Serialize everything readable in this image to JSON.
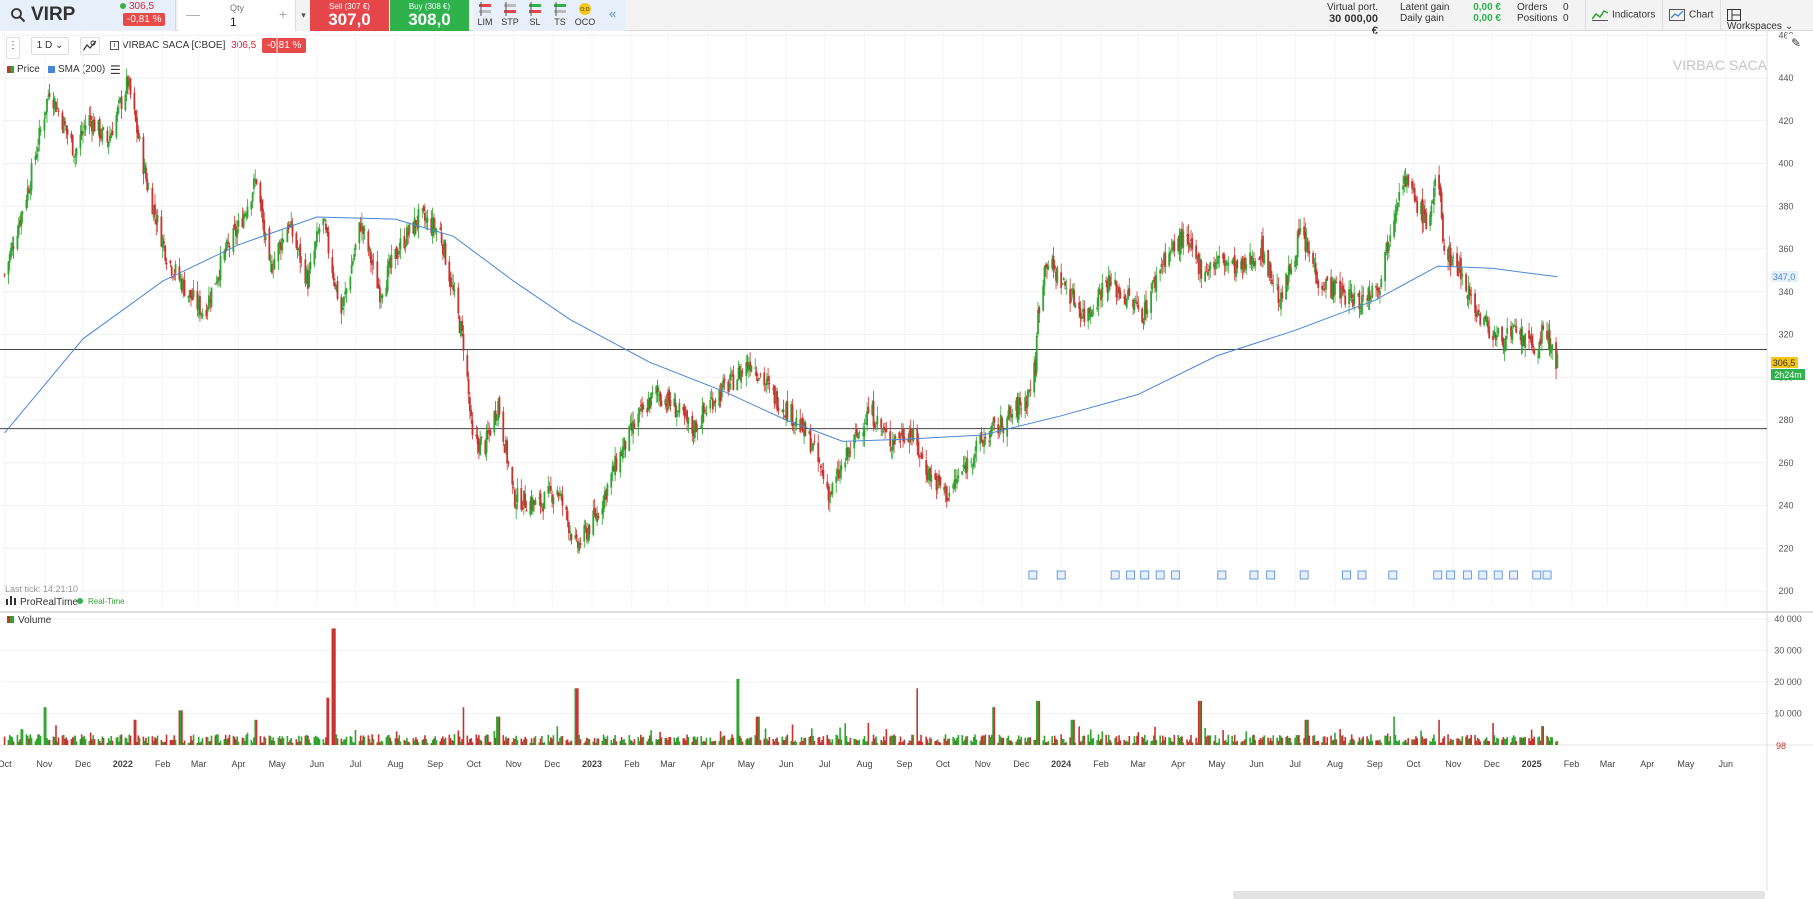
{
  "instrument": {
    "ticker": "VIRP",
    "last_price": "306,5",
    "change_pct": "-0,81 %",
    "full_name": "VIRBAC SACA [CBOE]",
    "watermark": "VIRBAC SACA"
  },
  "order_entry": {
    "qty_label": "Qty",
    "qty_value": "1",
    "sell_label": "Sell (307 €)",
    "sell_price": "307,0",
    "buy_label": "Buy (308 €)",
    "buy_price": "308,0",
    "order_types": [
      "LIM",
      "STP",
      "SL",
      "TS",
      "OCO"
    ],
    "oco_badge": "O:O",
    "collapse_glyph": "«"
  },
  "portfolio": {
    "virtual_label": "Virtual port.",
    "virtual_value": "30 000,00 €",
    "latent_label": "Latent gain",
    "latent_value": "0,00 €",
    "daily_label": "Daily gain",
    "daily_value": "0,00 €",
    "orders_label": "Orders",
    "orders_value": "0",
    "positions_label": "Positions",
    "positions_value": "0"
  },
  "toolbar": {
    "indicators": "Indicators",
    "chart": "Chart",
    "workspaces": "Workspaces"
  },
  "chart_controls": {
    "interval": "1 D",
    "legend_price": "Price",
    "legend_sma": "SMA (200)",
    "last_tick": "Last tick: 14:21:10",
    "brand": "ProRealTime",
    "realtime": "Real-Time",
    "volume_label": "Volume",
    "price_tag": "306,5",
    "time_tag": "2h24m",
    "sma_tag": "347,0",
    "vol_tag": "98"
  },
  "colors": {
    "up": "#2fa52f",
    "down": "#c8332f",
    "sma": "#4a86d8",
    "price_tag": "#f5c518",
    "time_tag": "#2fb24c",
    "sma_tag": "#e7f0fa"
  },
  "chart_data": [
    {
      "type": "candlestick",
      "title": "VIRBAC SACA",
      "y_ticks": [
        200,
        220,
        240,
        260,
        280,
        300,
        320,
        340,
        360,
        380,
        400,
        420,
        440,
        460
      ],
      "ylim": [
        193,
        462
      ],
      "x_labels": [
        "Oct",
        "Nov",
        "Dec",
        "2022",
        "Feb",
        "Mar",
        "Apr",
        "May",
        "Jun",
        "Jul",
        "Aug",
        "Sep",
        "Oct",
        "Nov",
        "Dec",
        "2023",
        "Feb",
        "Mar",
        "Apr",
        "May",
        "Jun",
        "Jul",
        "Aug",
        "Sep",
        "Oct",
        "Nov",
        "Dec",
        "2024",
        "Feb",
        "Mar",
        "Apr",
        "May",
        "Jun",
        "Jul",
        "Aug",
        "Sep",
        "Oct",
        "Nov",
        "Dec",
        "2025",
        "Feb",
        "Mar",
        "Apr",
        "May",
        "Jun"
      ],
      "x_range": [
        "2021-10",
        "2025-06"
      ],
      "horizontal_lines": [
        313,
        276
      ],
      "series": [
        {
          "name": "Price",
          "path": [
            [
              "2021-10-01",
              348
            ],
            [
              "2021-10-20",
              390
            ],
            [
              "2021-11-05",
              435
            ],
            [
              "2021-11-25",
              405
            ],
            [
              "2021-12-05",
              422
            ],
            [
              "2021-12-20",
              410
            ],
            [
              "2022-01-05",
              438
            ],
            [
              "2022-01-20",
              390
            ],
            [
              "2022-02-05",
              355
            ],
            [
              "2022-02-20",
              340
            ],
            [
              "2022-03-05",
              330
            ],
            [
              "2022-03-20",
              356
            ],
            [
              "2022-04-01",
              370
            ],
            [
              "2022-04-15",
              393
            ],
            [
              "2022-04-25",
              350
            ],
            [
              "2022-05-10",
              372
            ],
            [
              "2022-05-25",
              345
            ],
            [
              "2022-06-05",
              375
            ],
            [
              "2022-06-20",
              330
            ],
            [
              "2022-07-05",
              372
            ],
            [
              "2022-07-20",
              340
            ],
            [
              "2022-08-05",
              362
            ],
            [
              "2022-08-20",
              375
            ],
            [
              "2022-09-05",
              368
            ],
            [
              "2022-09-20",
              325
            ],
            [
              "2022-09-24",
              313
            ],
            [
              "2022-09-30",
              270
            ],
            [
              "2022-10-10",
              268
            ],
            [
              "2022-10-20",
              288
            ],
            [
              "2022-11-01",
              244
            ],
            [
              "2022-11-20",
              240
            ],
            [
              "2022-12-05",
              248
            ],
            [
              "2022-12-20",
              220
            ],
            [
              "2023-01-05",
              236
            ],
            [
              "2023-01-20",
              260
            ],
            [
              "2023-02-05",
              280
            ],
            [
              "2023-02-20",
              293
            ],
            [
              "2023-03-05",
              287
            ],
            [
              "2023-03-20",
              275
            ],
            [
              "2023-04-05",
              290
            ],
            [
              "2023-04-20",
              298
            ],
            [
              "2023-05-05",
              308
            ],
            [
              "2023-05-20",
              293
            ],
            [
              "2023-06-05",
              283
            ],
            [
              "2023-06-20",
              270
            ],
            [
              "2023-07-05",
              245
            ],
            [
              "2023-07-20",
              265
            ],
            [
              "2023-08-05",
              285
            ],
            [
              "2023-08-20",
              270
            ],
            [
              "2023-09-05",
              275
            ],
            [
              "2023-09-20",
              255
            ],
            [
              "2023-10-05",
              245
            ],
            [
              "2023-10-15",
              255
            ],
            [
              "2023-10-25",
              265
            ],
            [
              "2023-11-05",
              273
            ],
            [
              "2023-11-20",
              280
            ],
            [
              "2023-12-05",
              290
            ],
            [
              "2023-12-12",
              305
            ],
            [
              "2023-12-14",
              330
            ],
            [
              "2023-12-20",
              355
            ],
            [
              "2024-01-05",
              342
            ],
            [
              "2024-01-20",
              328
            ],
            [
              "2024-02-05",
              345
            ],
            [
              "2024-02-20",
              338
            ],
            [
              "2024-03-05",
              330
            ],
            [
              "2024-03-20",
              355
            ],
            [
              "2024-04-05",
              365
            ],
            [
              "2024-04-20",
              350
            ],
            [
              "2024-05-05",
              355
            ],
            [
              "2024-05-20",
              350
            ],
            [
              "2024-06-05",
              360
            ],
            [
              "2024-06-20",
              335
            ],
            [
              "2024-07-05",
              368
            ],
            [
              "2024-07-20",
              345
            ],
            [
              "2024-08-05",
              340
            ],
            [
              "2024-08-20",
              335
            ],
            [
              "2024-09-05",
              345
            ],
            [
              "2024-09-15",
              375
            ],
            [
              "2024-09-22",
              395
            ],
            [
              "2024-10-05",
              380
            ],
            [
              "2024-10-12",
              372
            ],
            [
              "2024-10-20",
              395
            ],
            [
              "2024-10-25",
              360
            ],
            [
              "2024-11-05",
              352
            ],
            [
              "2024-11-20",
              330
            ],
            [
              "2024-12-05",
              318
            ],
            [
              "2024-12-20",
              320
            ],
            [
              "2025-01-05",
              312
            ],
            [
              "2025-01-10",
              322
            ],
            [
              "2025-01-17",
              314
            ],
            [
              "2025-01-21",
              306.5
            ]
          ]
        },
        {
          "name": "SMA (200)",
          "path": [
            [
              "2021-10-01",
              274
            ],
            [
              "2021-12-01",
              318
            ],
            [
              "2022-02-01",
              345
            ],
            [
              "2022-04-01",
              362
            ],
            [
              "2022-06-01",
              375
            ],
            [
              "2022-08-01",
              374
            ],
            [
              "2022-09-15",
              366
            ],
            [
              "2022-11-01",
              345
            ],
            [
              "2022-12-15",
              327
            ],
            [
              "2023-02-15",
              307
            ],
            [
              "2023-04-15",
              293
            ],
            [
              "2023-06-01",
              280
            ],
            [
              "2023-07-15",
              270
            ],
            [
              "2023-09-01",
              271
            ],
            [
              "2023-11-01",
              273
            ],
            [
              "2024-01-01",
              282
            ],
            [
              "2024-03-01",
              292
            ],
            [
              "2024-05-01",
              310
            ],
            [
              "2024-07-01",
              322
            ],
            [
              "2024-09-01",
              336
            ],
            [
              "2024-10-20",
              352
            ],
            [
              "2024-12-01",
              351
            ],
            [
              "2025-01-21",
              347
            ]
          ]
        }
      ],
      "event_markers": [
        "2023-12-10",
        "2024-01-01",
        "2024-02-12",
        "2024-02-24",
        "2024-03-06",
        "2024-03-18",
        "2024-03-30",
        "2024-05-05",
        "2024-05-30",
        "2024-06-12",
        "2024-07-08",
        "2024-08-10",
        "2024-08-22",
        "2024-09-15",
        "2024-10-20",
        "2024-10-30",
        "2024-11-12",
        "2024-11-24",
        "2024-12-06",
        "2024-12-18",
        "2025-01-05",
        "2025-01-13"
      ]
    },
    {
      "type": "bar",
      "title": "Volume",
      "y_ticks": [
        10000,
        20000,
        30000,
        40000
      ],
      "ylim": [
        0,
        40000
      ],
      "peaks": [
        [
          "2021-10-15",
          5000
        ],
        [
          "2021-11-01",
          12000
        ],
        [
          "2022-01-10",
          8000
        ],
        [
          "2022-02-15",
          11000
        ],
        [
          "2022-04-15",
          8000
        ],
        [
          "2022-06-14",
          37000
        ],
        [
          "2022-06-10",
          15000
        ],
        [
          "2022-09-24",
          12000
        ],
        [
          "2022-10-20",
          9000
        ],
        [
          "2022-12-20",
          18000
        ],
        [
          "2023-04-24",
          21000
        ],
        [
          "2023-05-10",
          9000
        ],
        [
          "2023-08-05",
          7000
        ],
        [
          "2023-09-10",
          18000
        ],
        [
          "2023-11-10",
          12000
        ],
        [
          "2023-12-14",
          14000
        ],
        [
          "2024-01-10",
          8000
        ],
        [
          "2024-04-18",
          14000
        ],
        [
          "2024-07-10",
          8000
        ],
        [
          "2024-09-15",
          9000
        ],
        [
          "2024-10-20",
          8000
        ],
        [
          "2024-12-01",
          7000
        ],
        [
          "2025-01-10",
          6000
        ]
      ],
      "last_value": 98
    }
  ]
}
